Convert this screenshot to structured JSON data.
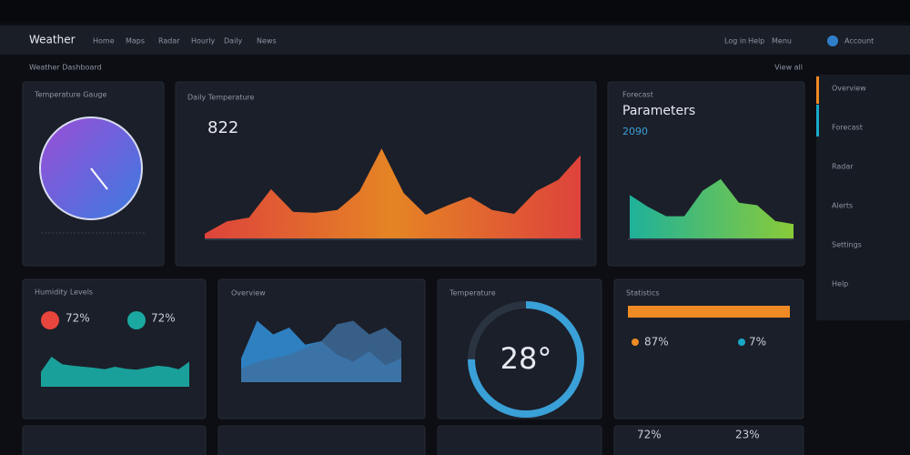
{
  "header": {
    "logo": "Weather",
    "nav": [
      "Home",
      "Maps",
      "Radar",
      "Hourly",
      "Daily",
      "News"
    ],
    "actions": [
      "Log in",
      "Help",
      "Menu"
    ],
    "user": "Account"
  },
  "subheader": {
    "left": "Weather Dashboard",
    "right": "View all"
  },
  "sidebar": [
    "Overview",
    "Forecast",
    "Radar",
    "Alerts",
    "Settings",
    "Help"
  ],
  "widgets": [
    {
      "title": "Temperature Gauge"
    },
    {
      "title": "Daily Temperature",
      "value": "822",
      "chart": {
        "color_from": "#e8453c",
        "color_to": "#f08a24",
        "values": [
          5,
          18,
          22,
          52,
          28,
          27,
          30,
          50,
          95,
          48,
          25,
          35,
          44,
          30,
          26,
          50,
          62,
          88
        ]
      }
    },
    {
      "title": "Forecast",
      "heading": "Parameters",
      "value": "2090",
      "chart": {
        "color_from": "#1fb9a0",
        "color_to": "#8fd43a",
        "values": [
          55,
          40,
          28,
          28,
          60,
          75,
          45,
          42,
          22,
          18
        ]
      }
    },
    {
      "title": "Humidity Levels",
      "stats": [
        "72%",
        "72%"
      ],
      "chart": {
        "color": "#1aa8a0",
        "values": [
          30,
          60,
          45,
          42,
          40,
          38,
          35,
          40,
          36,
          34,
          38,
          42,
          40,
          35,
          50
        ]
      }
    },
    {
      "title": "Overview",
      "chart": {
        "series": [
          {
            "color": "#2f86c9",
            "values": [
              35,
              90,
              70,
              80,
              55,
              60,
              40,
              30,
              45,
              25,
              35
            ]
          },
          {
            "color": "#3f6fa0",
            "values": [
              20,
              30,
              35,
              40,
              50,
              60,
              85,
              90,
              70,
              80,
              60
            ]
          }
        ]
      }
    },
    {
      "title": "Temperature",
      "value": "28°",
      "ring": 75
    },
    {
      "title": "Statistics",
      "stats": [
        "87%",
        "7%",
        "72%",
        "23%"
      ]
    }
  ]
}
